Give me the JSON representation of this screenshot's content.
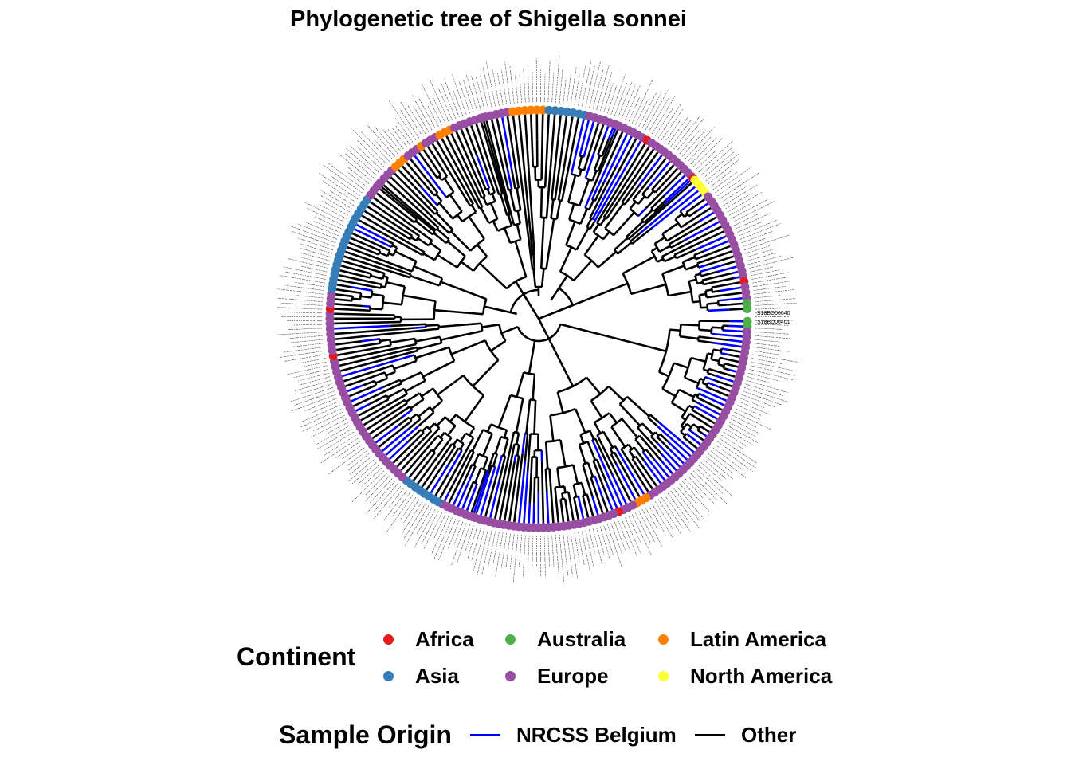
{
  "chart_data": {
    "type": "circular-phylogenetic-tree",
    "title": "Phylogenetic tree of Shigella sonnei",
    "legends": {
      "continent": {
        "title": "Continent",
        "entries": [
          {
            "label": "Africa",
            "color": "#e41a1c"
          },
          {
            "label": "Australia",
            "color": "#4daf4a"
          },
          {
            "label": "Latin America",
            "color": "#ff7f00"
          },
          {
            "label": "Asia",
            "color": "#377eb8"
          },
          {
            "label": "Europe",
            "color": "#984ea3"
          },
          {
            "label": "North America",
            "color": "#ffff33"
          }
        ]
      },
      "sample_origin": {
        "title": "Sample Origin",
        "entries": [
          {
            "label": "NRCSS Belgium",
            "color": "#0000ff"
          },
          {
            "label": "Other",
            "color": "#000000"
          }
        ]
      }
    },
    "visible_tip_labels": [
      "S18BD06640",
      "S18BD06401"
    ]
  }
}
